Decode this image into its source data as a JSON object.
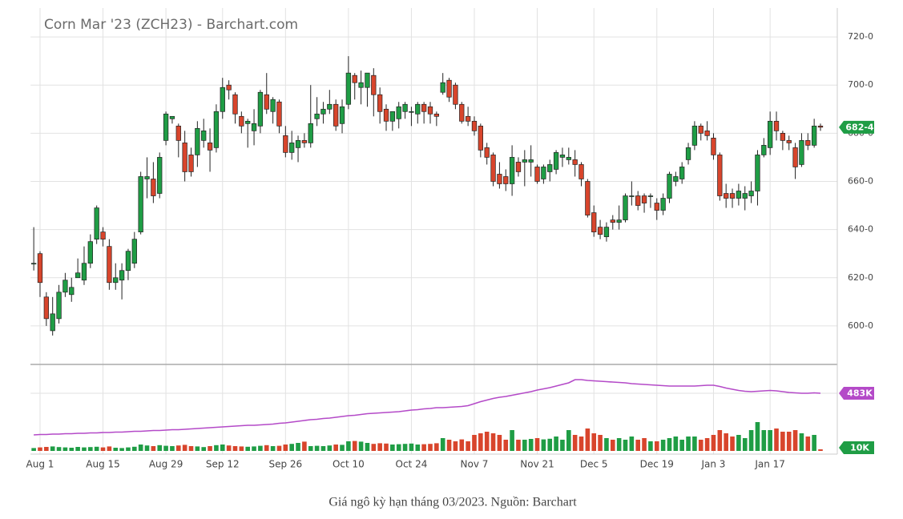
{
  "chart_data": {
    "type": "candlestick",
    "title": "Corn Mar '23 (ZCH23) - Barchart.com",
    "categories": [
      null,
      "Aug 1",
      null,
      null,
      null,
      null,
      null,
      null,
      null,
      null,
      null,
      "Aug 15",
      null,
      null,
      null,
      null,
      null,
      null,
      null,
      null,
      null,
      "Aug 29",
      null,
      null,
      null,
      null,
      null,
      null,
      null,
      null,
      "Sep 12",
      null,
      null,
      null,
      null,
      null,
      null,
      null,
      null,
      null,
      "Sep 26",
      null,
      null,
      null,
      null,
      null,
      null,
      null,
      null,
      null,
      "Oct 10",
      null,
      null,
      null,
      null,
      null,
      null,
      null,
      null,
      null,
      "Oct 24",
      null,
      null,
      null,
      null,
      null,
      null,
      null,
      null,
      null,
      "Nov 7",
      null,
      null,
      null,
      null,
      null,
      null,
      null,
      null,
      null,
      "Nov 21",
      null,
      null,
      null,
      null,
      null,
      null,
      null,
      null,
      "Dec 5",
      null,
      null,
      null,
      null,
      null,
      null,
      null,
      null,
      null,
      "Dec 19",
      null,
      null,
      null,
      null,
      null,
      null,
      null,
      null,
      "Jan 3",
      null,
      null,
      null,
      null,
      null,
      null,
      null,
      null,
      "Jan 17",
      null,
      null,
      null,
      null,
      null,
      null,
      null,
      null
    ],
    "open": [
      626,
      630,
      612,
      598,
      603,
      614,
      613,
      620,
      619,
      626,
      636,
      639,
      633,
      618,
      619,
      623,
      626,
      639,
      661,
      661,
      655,
      677,
      686,
      683,
      676,
      671,
      671,
      677,
      676,
      674,
      689,
      700,
      696,
      687,
      684,
      681,
      683,
      696,
      689,
      693,
      679,
      672,
      674,
      677,
      676,
      686,
      688,
      690,
      692,
      684,
      692,
      704,
      699,
      699,
      704,
      696,
      690,
      685,
      686,
      689,
      689,
      688,
      692,
      691,
      688,
      697,
      702,
      700,
      692,
      687,
      685,
      683,
      674,
      671,
      663,
      662,
      659,
      668,
      668,
      668,
      666,
      661,
      664,
      665,
      670,
      669,
      669,
      667,
      660,
      647,
      641,
      637,
      644,
      643,
      644,
      654,
      654,
      654,
      654,
      651,
      648,
      653,
      660,
      661,
      669,
      675,
      683,
      681,
      678,
      671,
      655,
      655,
      653,
      653,
      654,
      656,
      671,
      674,
      685,
      680,
      677,
      674,
      667,
      677,
      675,
      683
    ],
    "high": [
      641,
      631,
      614,
      612,
      617,
      622,
      620,
      628,
      633,
      638,
      650,
      641,
      636,
      626,
      626,
      632,
      639,
      664,
      670,
      668,
      672,
      689,
      687,
      684,
      681,
      674,
      685,
      686,
      682,
      692,
      703,
      702,
      697,
      689,
      686,
      690,
      698,
      705,
      695,
      694,
      683,
      681,
      679,
      680,
      700,
      695,
      693,
      698,
      694,
      694,
      712,
      705,
      706,
      705,
      707,
      699,
      692,
      689,
      693,
      693,
      691,
      693,
      693,
      693,
      689,
      705,
      703,
      701,
      693,
      691,
      687,
      684,
      676,
      672,
      668,
      665,
      675,
      670,
      673,
      675,
      667,
      667,
      669,
      673,
      674,
      674,
      673,
      668,
      661,
      650,
      644,
      643,
      646,
      650,
      655,
      660,
      656,
      655,
      655,
      653,
      655,
      664,
      664,
      668,
      676,
      685,
      684,
      685,
      680,
      672,
      659,
      657,
      659,
      658,
      660,
      673,
      678,
      689,
      689,
      681,
      679,
      676,
      680,
      680,
      686,
      684
    ],
    "low": [
      623,
      612,
      600,
      596,
      601,
      612,
      610,
      620,
      617,
      624,
      634,
      633,
      615,
      615,
      611,
      619,
      624,
      638,
      653,
      651,
      653,
      675,
      684,
      670,
      660,
      662,
      666,
      674,
      664,
      672,
      686,
      694,
      684,
      680,
      674,
      675,
      680,
      688,
      684,
      680,
      670,
      669,
      668,
      674,
      674,
      683,
      684,
      688,
      681,
      680,
      690,
      694,
      692,
      691,
      687,
      684,
      681,
      681,
      682,
      686,
      683,
      684,
      684,
      684,
      683,
      696,
      693,
      690,
      684,
      683,
      679,
      670,
      667,
      658,
      657,
      656,
      654,
      662,
      658,
      662,
      659,
      659,
      660,
      663,
      666,
      667,
      662,
      658,
      645,
      637,
      636,
      635,
      640,
      640,
      643,
      650,
      648,
      647,
      649,
      644,
      646,
      651,
      658,
      659,
      667,
      673,
      677,
      677,
      669,
      652,
      649,
      649,
      650,
      648,
      651,
      650,
      670,
      671,
      677,
      673,
      673,
      661,
      666,
      673,
      674,
      681
    ],
    "close": [
      626,
      618,
      603,
      605,
      614,
      619,
      616,
      622,
      626,
      635,
      649,
      636,
      618,
      620,
      623,
      631,
      636,
      662,
      662,
      654,
      670,
      688,
      687,
      677,
      664,
      664,
      682,
      681,
      673,
      689,
      699,
      698,
      688,
      683,
      685,
      684,
      697,
      690,
      694,
      683,
      672,
      676,
      677,
      676,
      684,
      688,
      690,
      692,
      683,
      691,
      705,
      701,
      701,
      705,
      696,
      689,
      685,
      689,
      691,
      692,
      689,
      692,
      689,
      688,
      687,
      701,
      695,
      692,
      685,
      685,
      681,
      673,
      670,
      660,
      659,
      659,
      670,
      664,
      669,
      669,
      660,
      666,
      667,
      672,
      671,
      670,
      667,
      661,
      646,
      639,
      638,
      641,
      643,
      644,
      654,
      654,
      650,
      651,
      654,
      648,
      653,
      663,
      662,
      666,
      674,
      683,
      680,
      679,
      671,
      654,
      653,
      653,
      656,
      655,
      656,
      671,
      675,
      685,
      681,
      677,
      676,
      666,
      677,
      675,
      683,
      682.5
    ],
    "volume": [
      18000,
      22000,
      25000,
      28000,
      24000,
      22000,
      20000,
      25000,
      22000,
      24000,
      26000,
      22000,
      28000,
      20000,
      18000,
      22000,
      26000,
      40000,
      34000,
      30000,
      36000,
      32000,
      30000,
      34000,
      38000,
      30000,
      28000,
      24000,
      30000,
      36000,
      40000,
      34000,
      30000,
      28000,
      26000,
      28000,
      32000,
      36000,
      30000,
      32000,
      40000,
      44000,
      50000,
      58000,
      30000,
      32000,
      30000,
      34000,
      40000,
      38000,
      60000,
      62000,
      58000,
      50000,
      44000,
      48000,
      46000,
      40000,
      42000,
      44000,
      46000,
      40000,
      42000,
      44000,
      48000,
      80000,
      70000,
      60000,
      72000,
      60000,
      100000,
      110000,
      120000,
      110000,
      100000,
      70000,
      130000,
      70000,
      70000,
      75000,
      80000,
      72000,
      76000,
      90000,
      70000,
      130000,
      100000,
      90000,
      140000,
      110000,
      100000,
      80000,
      70000,
      80000,
      70000,
      90000,
      70000,
      80000,
      60000,
      60000,
      70000,
      80000,
      90000,
      70000,
      90000,
      90000,
      70000,
      80000,
      100000,
      130000,
      110000,
      90000,
      100000,
      80000,
      130000,
      180000,
      130000,
      130000,
      140000,
      120000,
      120000,
      130000,
      110000,
      90000,
      100000,
      10000
    ],
    "open_interest": [
      379000,
      380000,
      380000,
      381000,
      381000,
      382000,
      382000,
      383000,
      383000,
      384000,
      384000,
      385000,
      385000,
      386000,
      386000,
      387000,
      388000,
      388000,
      389000,
      390000,
      390000,
      391000,
      392000,
      392000,
      393000,
      394000,
      395000,
      396000,
      397000,
      398000,
      399000,
      400000,
      401000,
      402000,
      403000,
      403000,
      404000,
      405000,
      406000,
      408000,
      409000,
      411000,
      413000,
      415000,
      417000,
      418000,
      420000,
      421000,
      423000,
      425000,
      427000,
      428000,
      430000,
      432000,
      433000,
      434000,
      435000,
      436000,
      437000,
      439000,
      441000,
      442000,
      444000,
      445000,
      447000,
      447000,
      448000,
      449000,
      450000,
      452000,
      457000,
      462000,
      466000,
      470000,
      473000,
      475000,
      478000,
      481000,
      484000,
      487000,
      491000,
      494000,
      497000,
      501000,
      505000,
      509000,
      517000,
      517000,
      515000,
      514000,
      513000,
      512000,
      511000,
      510000,
      509000,
      507000,
      506000,
      505000,
      504000,
      503000,
      502000,
      501000,
      501000,
      501000,
      501000,
      501000,
      502000,
      503000,
      503000,
      500000,
      496000,
      493000,
      490000,
      488000,
      487000,
      488000,
      489000,
      490000,
      489000,
      487000,
      485000,
      484000,
      483000,
      483000,
      484000,
      483000
    ],
    "ylim": [
      584,
      732
    ],
    "yticks": [
      {
        "value": 600,
        "label": "600-0"
      },
      {
        "value": 620,
        "label": "620-0"
      },
      {
        "value": 640,
        "label": "640-0"
      },
      {
        "value": 660,
        "label": "660-0"
      },
      {
        "value": 680,
        "label": "680-0"
      },
      {
        "value": 700,
        "label": "700-0"
      },
      {
        "value": 720,
        "label": "720-0"
      }
    ],
    "volume_ylim": [
      0,
      535000
    ],
    "y2lim": [
      339000,
      553000
    ],
    "last_price": {
      "value": 682.5,
      "label": "682-4"
    },
    "last_open_interest": {
      "value": 483000,
      "label": "483K"
    },
    "last_volume": {
      "value": 10000,
      "label": "10K"
    },
    "up_color": "#1f9d45",
    "down_color": "#d8452c",
    "open_interest_color": "#b44ac8",
    "grid": true
  },
  "caption": "Giá ngô kỳ hạn tháng 03/2023. Nguồn: Barchart"
}
